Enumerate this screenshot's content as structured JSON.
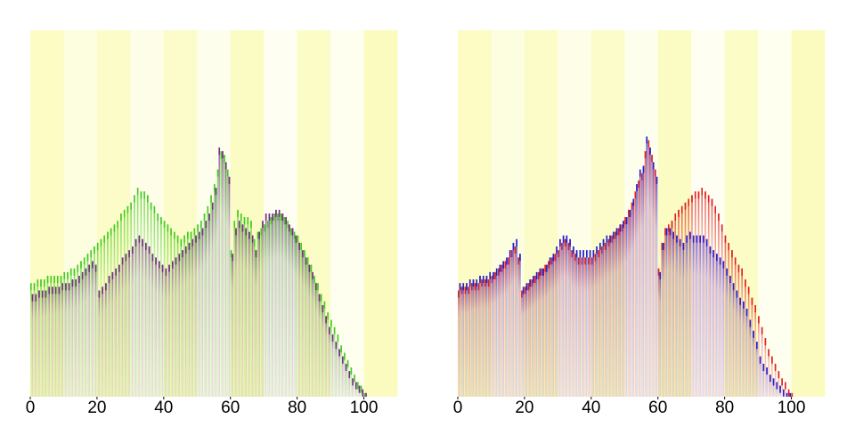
{
  "chart_data": [
    {
      "type": "bar",
      "x": [
        0,
        1,
        2,
        3,
        4,
        5,
        6,
        7,
        8,
        9,
        10,
        11,
        12,
        13,
        14,
        15,
        16,
        17,
        18,
        19,
        20,
        21,
        22,
        23,
        24,
        25,
        26,
        27,
        28,
        29,
        30,
        31,
        32,
        33,
        34,
        35,
        36,
        37,
        38,
        39,
        40,
        41,
        42,
        43,
        44,
        45,
        46,
        47,
        48,
        49,
        50,
        51,
        52,
        53,
        54,
        55,
        56,
        57,
        58,
        59,
        60,
        61,
        62,
        63,
        64,
        65,
        66,
        67,
        68,
        69,
        70,
        71,
        72,
        73,
        74,
        75,
        76,
        77,
        78,
        79,
        80,
        81,
        82,
        83,
        84,
        85,
        86,
        87,
        88,
        89,
        90,
        91,
        92,
        93,
        94,
        95,
        96,
        97,
        98,
        99,
        100
      ],
      "series": [
        {
          "color": "#44cc22",
          "values": [
            31,
            31,
            32,
            32,
            32,
            33,
            33,
            33,
            33,
            33,
            34,
            34,
            35,
            35,
            36,
            37,
            38,
            39,
            40,
            41,
            42,
            43,
            44,
            45,
            46,
            47,
            48,
            50,
            51,
            52,
            53,
            55,
            57,
            56,
            56,
            55,
            53,
            52,
            50,
            49,
            48,
            47,
            46,
            45,
            44,
            43,
            44,
            45,
            45,
            46,
            47,
            48,
            50,
            52,
            55,
            58,
            62,
            67,
            66,
            62,
            40,
            48,
            51,
            50,
            49,
            49,
            48,
            43,
            45,
            46,
            47,
            48,
            49,
            50,
            50,
            50,
            49,
            48,
            46,
            45,
            44,
            42,
            40,
            38,
            36,
            33,
            31,
            28,
            26,
            23,
            21,
            19,
            17,
            14,
            12,
            10,
            8,
            6,
            4,
            3,
            1
          ]
        },
        {
          "color": "#7a2a8a",
          "values": [
            28,
            28,
            29,
            29,
            29,
            30,
            30,
            30,
            30,
            31,
            31,
            31,
            32,
            32,
            33,
            34,
            35,
            36,
            37,
            36,
            29,
            30,
            31,
            33,
            34,
            35,
            36,
            38,
            39,
            40,
            41,
            43,
            44,
            43,
            42,
            41,
            39,
            38,
            37,
            36,
            35,
            36,
            37,
            38,
            39,
            40,
            41,
            42,
            43,
            44,
            45,
            46,
            48,
            50,
            53,
            57,
            68,
            67,
            64,
            60,
            39,
            46,
            48,
            47,
            46,
            45,
            44,
            40,
            45,
            48,
            50,
            50,
            50,
            51,
            51,
            50,
            49,
            47,
            46,
            44,
            42,
            40,
            38,
            36,
            34,
            31,
            28,
            25,
            22,
            19,
            17,
            15,
            13,
            11,
            9,
            7,
            5,
            4,
            3,
            2,
            1
          ]
        }
      ],
      "xlim": [
        0,
        110
      ],
      "xticks": [
        0,
        20,
        40,
        60,
        80,
        100
      ],
      "ylim": [
        0,
        100
      ]
    },
    {
      "type": "bar",
      "x": [
        0,
        1,
        2,
        3,
        4,
        5,
        6,
        7,
        8,
        9,
        10,
        11,
        12,
        13,
        14,
        15,
        16,
        17,
        18,
        19,
        20,
        21,
        22,
        23,
        24,
        25,
        26,
        27,
        28,
        29,
        30,
        31,
        32,
        33,
        34,
        35,
        36,
        37,
        38,
        39,
        40,
        41,
        42,
        43,
        44,
        45,
        46,
        47,
        48,
        49,
        50,
        51,
        52,
        53,
        54,
        55,
        56,
        57,
        58,
        59,
        60,
        61,
        62,
        63,
        64,
        65,
        66,
        67,
        68,
        69,
        70,
        71,
        72,
        73,
        74,
        75,
        76,
        77,
        78,
        79,
        80,
        81,
        82,
        83,
        84,
        85,
        86,
        87,
        88,
        89,
        90,
        91,
        92,
        93,
        94,
        95,
        96,
        97,
        98,
        99,
        100
      ],
      "series": [
        {
          "color": "#e02020",
          "values": [
            29,
            30,
            30,
            30,
            31,
            31,
            31,
            32,
            32,
            32,
            33,
            34,
            35,
            36,
            37,
            38,
            40,
            41,
            38,
            29,
            30,
            31,
            32,
            33,
            34,
            35,
            36,
            37,
            38,
            39,
            40,
            42,
            43,
            42,
            40,
            39,
            38,
            38,
            38,
            38,
            38,
            39,
            40,
            41,
            42,
            43,
            44,
            45,
            46,
            47,
            49,
            51,
            53,
            56,
            59,
            61,
            67,
            70,
            66,
            62,
            35,
            42,
            46,
            47,
            48,
            50,
            51,
            52,
            53,
            54,
            55,
            56,
            56,
            57,
            56,
            55,
            54,
            52,
            50,
            47,
            44,
            42,
            40,
            38,
            36,
            35,
            32,
            30,
            27,
            25,
            22,
            19,
            16,
            13,
            11,
            9,
            7,
            5,
            4,
            2,
            1
          ]
        },
        {
          "color": "#2020d0",
          "values": [
            31,
            31,
            31,
            32,
            32,
            32,
            33,
            33,
            33,
            34,
            34,
            35,
            36,
            37,
            38,
            40,
            42,
            43,
            39,
            30,
            31,
            32,
            33,
            34,
            35,
            35,
            36,
            38,
            39,
            41,
            43,
            44,
            44,
            43,
            41,
            40,
            40,
            40,
            40,
            40,
            40,
            41,
            42,
            43,
            44,
            44,
            45,
            46,
            47,
            48,
            49,
            51,
            54,
            58,
            62,
            63,
            71,
            68,
            64,
            60,
            34,
            42,
            46,
            46,
            45,
            44,
            43,
            42,
            44,
            45,
            44,
            44,
            44,
            44,
            43,
            41,
            40,
            39,
            38,
            37,
            35,
            33,
            31,
            29,
            27,
            26,
            24,
            21,
            18,
            15,
            11,
            9,
            8,
            6,
            5,
            4,
            3,
            2,
            1,
            1,
            0
          ]
        }
      ],
      "xlim": [
        0,
        110
      ],
      "xticks": [
        0,
        20,
        40,
        60,
        80,
        100
      ],
      "ylim": [
        0,
        100
      ]
    }
  ]
}
